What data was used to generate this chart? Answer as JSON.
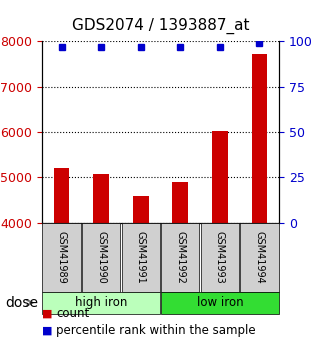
{
  "title": "GDS2074 / 1393887_at",
  "samples": [
    "GSM41989",
    "GSM41990",
    "GSM41991",
    "GSM41992",
    "GSM41993",
    "GSM41994"
  ],
  "counts": [
    5200,
    5080,
    4580,
    4900,
    6020,
    7720
  ],
  "percentile_ranks": [
    97,
    97,
    97,
    97,
    97,
    99
  ],
  "groups": [
    "high iron",
    "high iron",
    "high iron",
    "low iron",
    "low iron",
    "low iron"
  ],
  "group_labels": [
    "high iron",
    "low iron"
  ],
  "high_iron_color": "#bbffbb",
  "low_iron_color": "#33dd33",
  "ylim_left": [
    4000,
    8000
  ],
  "ylim_right": [
    0,
    100
  ],
  "yticks_left": [
    4000,
    5000,
    6000,
    7000,
    8000
  ],
  "yticks_right": [
    0,
    25,
    50,
    75,
    100
  ],
  "bar_color": "#cc0000",
  "dot_color": "#0000cc",
  "left_tick_color": "#cc0000",
  "right_tick_color": "#0000cc",
  "sample_box_color": "#d0d0d0",
  "font_size_title": 11,
  "font_size_ticks": 9,
  "font_size_legend": 8.5,
  "font_size_dose": 10,
  "font_size_sample": 7,
  "font_size_group": 8.5,
  "bar_width": 0.4,
  "dose_label": "dose",
  "legend_count": "count",
  "legend_percentile": "percentile rank within the sample"
}
